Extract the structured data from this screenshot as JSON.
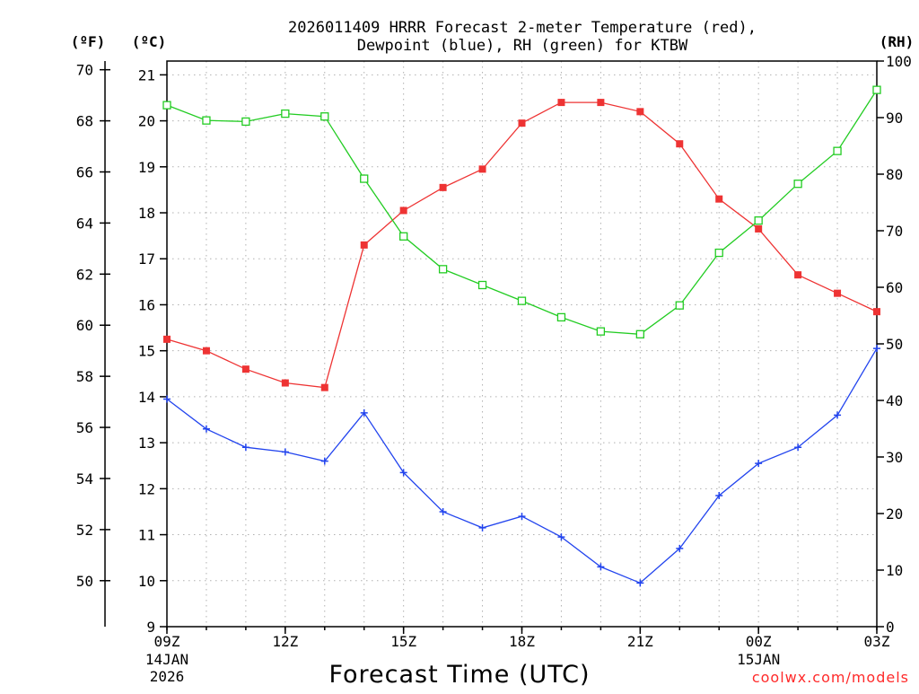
{
  "chart_data": {
    "type": "line",
    "title_lines": [
      "2026011409 HRRR Forecast 2-meter Temperature (red),",
      "Dewpoint (blue), RH (green) for KTBW"
    ],
    "units": {
      "fahrenheit": "(ºF)",
      "celsius": "(ºC)",
      "rh": "(RH)"
    },
    "xlabel": "Forecast Time (UTC)",
    "credit": "coolwx.com/models",
    "x_hours": [
      0,
      1,
      2,
      3,
      4,
      5,
      6,
      7,
      8,
      9,
      10,
      11,
      12,
      13,
      14,
      15,
      16,
      17,
      18
    ],
    "x_range": [
      0,
      18
    ],
    "x_ticks": [
      {
        "hour": 0,
        "label": "09Z",
        "sub": [
          "14JAN",
          "2026"
        ]
      },
      {
        "hour": 3,
        "label": "12Z",
        "sub": []
      },
      {
        "hour": 6,
        "label": "15Z",
        "sub": []
      },
      {
        "hour": 9,
        "label": "18Z",
        "sub": []
      },
      {
        "hour": 12,
        "label": "21Z",
        "sub": []
      },
      {
        "hour": 15,
        "label": "00Z",
        "sub": [
          "15JAN"
        ]
      },
      {
        "hour": 18,
        "label": "03Z",
        "sub": []
      }
    ],
    "celsius_range": [
      9,
      21.3
    ],
    "celsius_ticks": [
      "9",
      "10",
      "11",
      "12",
      "13",
      "14",
      "15",
      "16",
      "17",
      "18",
      "19",
      "20",
      "21"
    ],
    "fahrenheit_ticks": [
      "50",
      "52",
      "54",
      "56",
      "58",
      "60",
      "62",
      "64",
      "66",
      "68",
      "70"
    ],
    "rh_range": [
      0,
      100
    ],
    "rh_ticks": [
      "0",
      "10",
      "20",
      "30",
      "40",
      "50",
      "60",
      "70",
      "80",
      "90",
      "100"
    ],
    "grid": true,
    "series": [
      {
        "name": "2-meter Temperature",
        "unit": "C",
        "color": "#ee3333",
        "marker": "filled-square",
        "values": [
          15.25,
          15.0,
          14.6,
          14.3,
          14.2,
          17.3,
          18.05,
          18.55,
          18.95,
          19.95,
          20.4,
          20.4,
          20.2,
          19.5,
          18.3,
          17.65,
          16.65,
          16.25,
          15.85
        ]
      },
      {
        "name": "Dewpoint",
        "unit": "C",
        "color": "#2244ee",
        "marker": "plus",
        "values": [
          13.95,
          13.3,
          12.9,
          12.8,
          12.6,
          13.65,
          12.35,
          11.5,
          11.15,
          11.4,
          10.95,
          10.3,
          9.95,
          10.7,
          11.85,
          12.55,
          12.9,
          13.6,
          15.05
        ]
      },
      {
        "name": "RH",
        "unit": "%",
        "color": "#22cc22",
        "marker": "open-square",
        "values": [
          92.2,
          89.5,
          89.3,
          90.7,
          90.2,
          79.2,
          69.0,
          63.2,
          60.4,
          57.6,
          54.7,
          52.2,
          51.7,
          56.8,
          66.1,
          71.8,
          78.3,
          84.1,
          94.9
        ]
      }
    ]
  }
}
